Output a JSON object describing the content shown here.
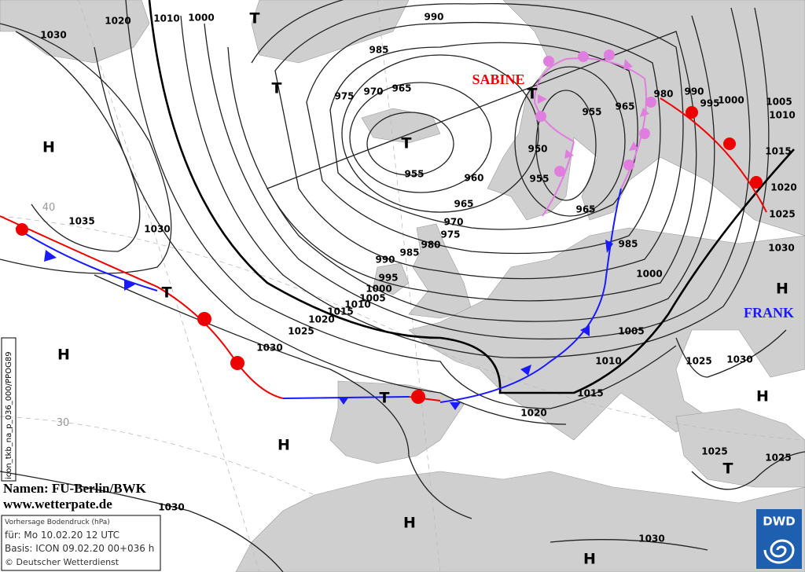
{
  "isobar_labels": [
    1020,
    1030,
    1010,
    1000,
    990,
    985,
    975,
    970,
    965,
    955,
    960,
    965,
    970,
    975,
    980,
    985,
    990,
    995,
    1000,
    1005,
    1010,
    1015,
    1020,
    1025,
    1030,
    1035,
    1030,
    955,
    965,
    950,
    955,
    965,
    985,
    1000,
    1005,
    1010,
    1015,
    1020,
    980,
    990,
    995,
    1000,
    1005,
    1010,
    1015,
    1020,
    1025,
    1030,
    1025,
    1030,
    1025,
    1025,
    1030,
    1030
  ],
  "pressure_centers": [
    "H",
    "H",
    "H",
    "H",
    "H",
    "H",
    "H",
    "T",
    "T",
    "T",
    "T",
    "T",
    "T",
    "T"
  ],
  "storm_names": [
    "SABINE",
    "FRANK"
  ],
  "grid_labels": [
    "40",
    "30"
  ],
  "footer": {
    "product_code": "icon_tkb_na_p_036_000/PPOG89",
    "names": "Namen: FU-Berlin/BWK",
    "website": "www.wetterpate.de",
    "info": [
      "Vorhersage Bodendruck (hPa)",
      "für:  Mo 10.02.20  12 UTC",
      "Basis: ICON  09.02.20 00+036 h",
      "© Deutscher Wetterdienst"
    ]
  },
  "logo": "DWD"
}
